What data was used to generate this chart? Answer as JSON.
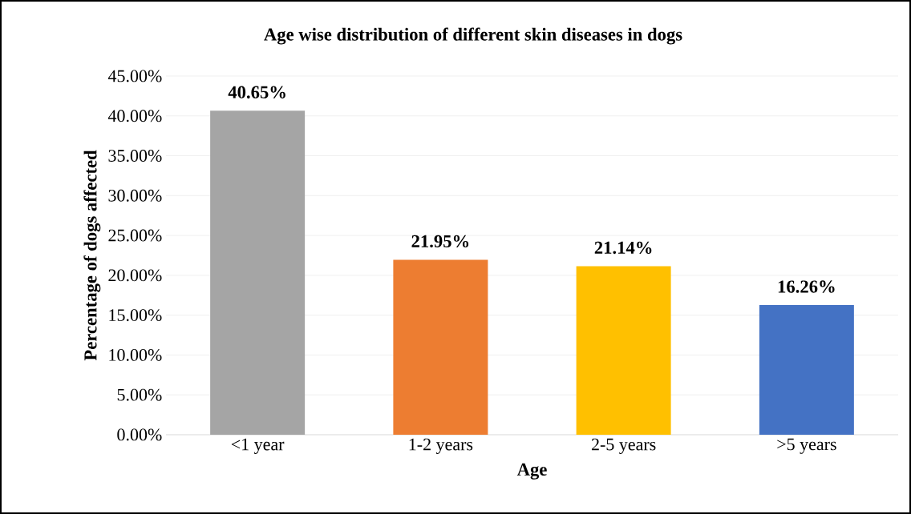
{
  "chart_data": {
    "type": "bar",
    "title": "Age wise distribution of different skin diseases in dogs",
    "xlabel": "Age",
    "ylabel": "Percentage of dogs affected",
    "categories": [
      "<1 year",
      "1-2 years",
      "2-5 years",
      ">5 years"
    ],
    "values": [
      40.65,
      21.95,
      21.14,
      16.26
    ],
    "value_labels": [
      "40.65%",
      "21.95%",
      "21.14%",
      "16.26%"
    ],
    "colors": [
      "#a5a5a5",
      "#ed7d31",
      "#ffc000",
      "#4472c4"
    ],
    "ylim": [
      0,
      45
    ],
    "yticks": [
      {
        "value": 0,
        "label": "0.00%"
      },
      {
        "value": 5,
        "label": "5.00%"
      },
      {
        "value": 10,
        "label": "10.00%"
      },
      {
        "value": 15,
        "label": "15.00%"
      },
      {
        "value": 20,
        "label": "20.00%"
      },
      {
        "value": 25,
        "label": "25.00%"
      },
      {
        "value": 30,
        "label": "30.00%"
      },
      {
        "value": 35,
        "label": "35.00%"
      },
      {
        "value": 40,
        "label": "40.00%"
      },
      {
        "value": 45,
        "label": "45.00%"
      }
    ],
    "grid": "y"
  }
}
